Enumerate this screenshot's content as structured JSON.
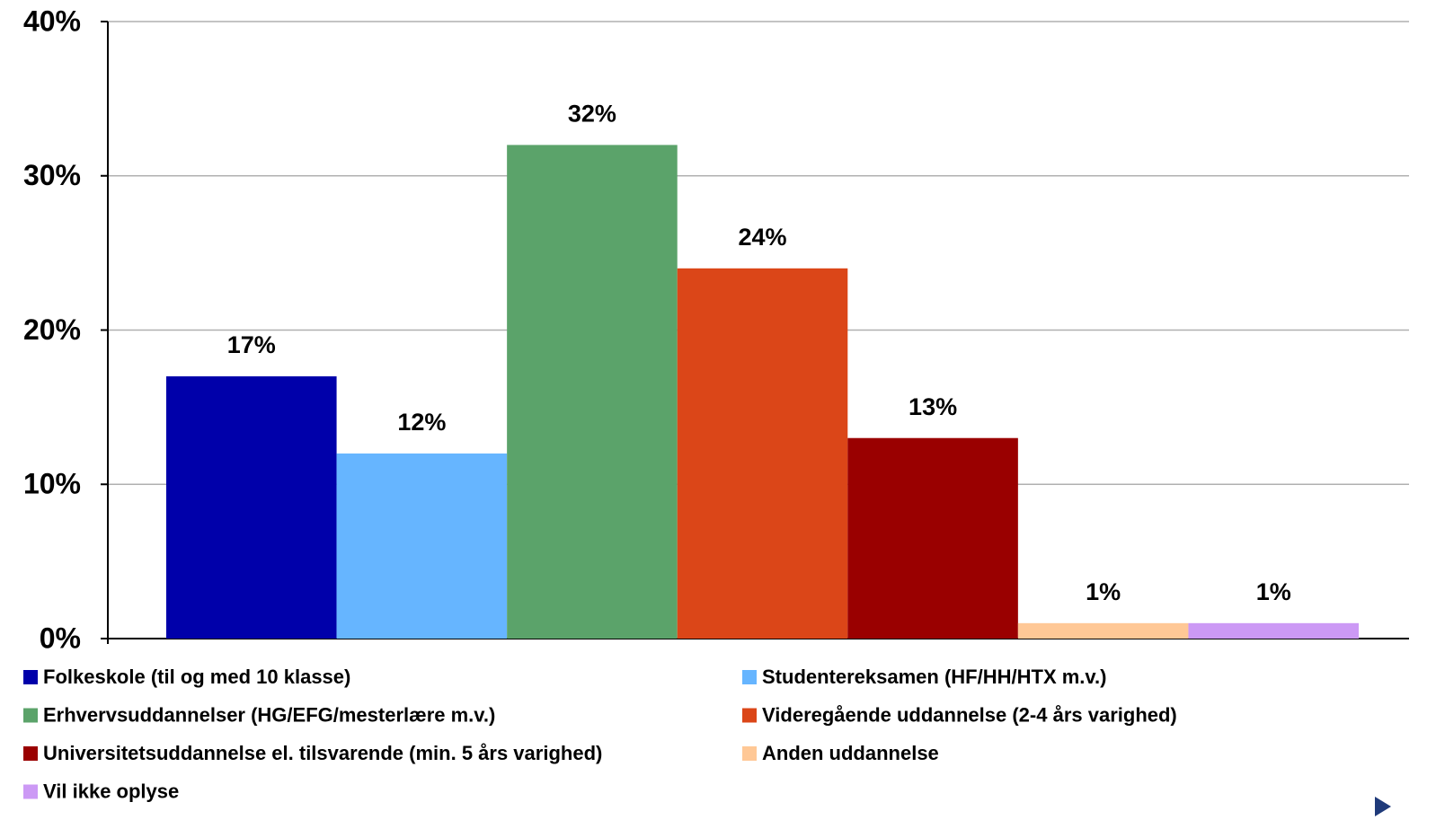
{
  "chart_data": {
    "type": "bar",
    "series": [
      {
        "name": "Folkeskole (til og med 10 klasse)",
        "color": "#0000aa",
        "values": [
          17
        ],
        "value_labels": [
          "17%"
        ]
      },
      {
        "name": "Studentereksamen (HF/HH/HTX m.v.)",
        "color": "#66b5ff",
        "values": [
          12
        ],
        "value_labels": [
          "12%"
        ]
      },
      {
        "name": "Erhvervsuddannelser (HG/EFG/mesterlære m.v.)",
        "color": "#5ba36a",
        "values": [
          32
        ],
        "value_labels": [
          "32%"
        ]
      },
      {
        "name": "Videregående uddannelse (2-4 års varighed)",
        "color": "#db4618",
        "values": [
          24
        ],
        "value_labels": [
          "24%"
        ]
      },
      {
        "name": "Universitetsuddannelse el. tilsvarende (min. 5 års varighed)",
        "color": "#9a0000",
        "values": [
          13
        ],
        "value_labels": [
          "13%"
        ]
      },
      {
        "name": "Anden uddannelse",
        "color": "#ffc896",
        "values": [
          1
        ],
        "value_labels": [
          "1%"
        ]
      },
      {
        "name": "Vil ikke oplyse",
        "color": "#cc99f5",
        "values": [
          1
        ],
        "value_labels": [
          "1%"
        ]
      }
    ],
    "ylim": [
      0,
      40
    ],
    "yticks": [
      {
        "value": 0,
        "label": "0%"
      },
      {
        "value": 10,
        "label": "10%"
      },
      {
        "value": 20,
        "label": "20%"
      },
      {
        "value": 30,
        "label": "30%"
      },
      {
        "value": 40,
        "label": "40%"
      }
    ],
    "grid": true,
    "legend": "bottom"
  }
}
